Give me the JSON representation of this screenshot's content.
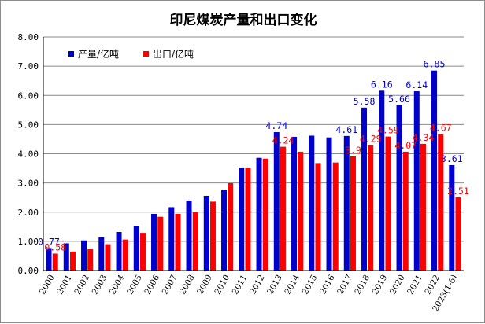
{
  "chart_data": {
    "type": "bar",
    "title": "印尼煤炭产量和出口变化",
    "xlabel": "",
    "ylabel": "",
    "ylim": [
      0,
      8
    ],
    "yticks": [
      "0.00",
      "1.00",
      "2.00",
      "3.00",
      "4.00",
      "5.00",
      "6.00",
      "7.00",
      "8.00"
    ],
    "grid": true,
    "legend_position": "top-left",
    "categories": [
      "2000",
      "2001",
      "2002",
      "2003",
      "2004",
      "2005",
      "2006",
      "2007",
      "2008",
      "2009",
      "2010",
      "2011",
      "2012",
      "2013",
      "2014",
      "2015",
      "2016",
      "2017",
      "2018",
      "2019",
      "2020",
      "2021",
      "2022",
      "2023(1-6)"
    ],
    "series": [
      {
        "name": "产量/亿吨",
        "color": "#0000cc",
        "values": [
          0.77,
          0.93,
          1.03,
          1.14,
          1.32,
          1.52,
          1.94,
          2.17,
          2.4,
          2.56,
          2.75,
          3.53,
          3.86,
          4.74,
          4.58,
          4.62,
          4.56,
          4.61,
          5.58,
          6.16,
          5.66,
          6.14,
          6.85,
          3.61
        ],
        "labels": [
          "0.77",
          "",
          "",
          "",
          "",
          "",
          "",
          "",
          "",
          "",
          "",
          "",
          "",
          "4.74",
          "",
          "",
          "",
          "4.61",
          "5.58",
          "6.16",
          "5.66",
          "6.14",
          "6.85",
          "3.61"
        ]
      },
      {
        "name": "出口/亿吨",
        "color": "#ff0000",
        "values": [
          0.58,
          0.65,
          0.74,
          0.9,
          1.06,
          1.29,
          1.84,
          1.94,
          2.0,
          2.36,
          2.99,
          3.53,
          3.83,
          4.24,
          4.07,
          3.68,
          3.7,
          3.91,
          4.29,
          4.59,
          4.07,
          4.34,
          4.67,
          2.51
        ],
        "labels": [
          "0.58",
          "",
          "",
          "",
          "",
          "",
          "",
          "",
          "",
          "",
          "",
          "",
          "",
          "4.24",
          "",
          "",
          "",
          "3.9",
          "4.29",
          "4.59",
          "4.07",
          "4.34",
          "4.67",
          "2.51"
        ]
      }
    ]
  }
}
